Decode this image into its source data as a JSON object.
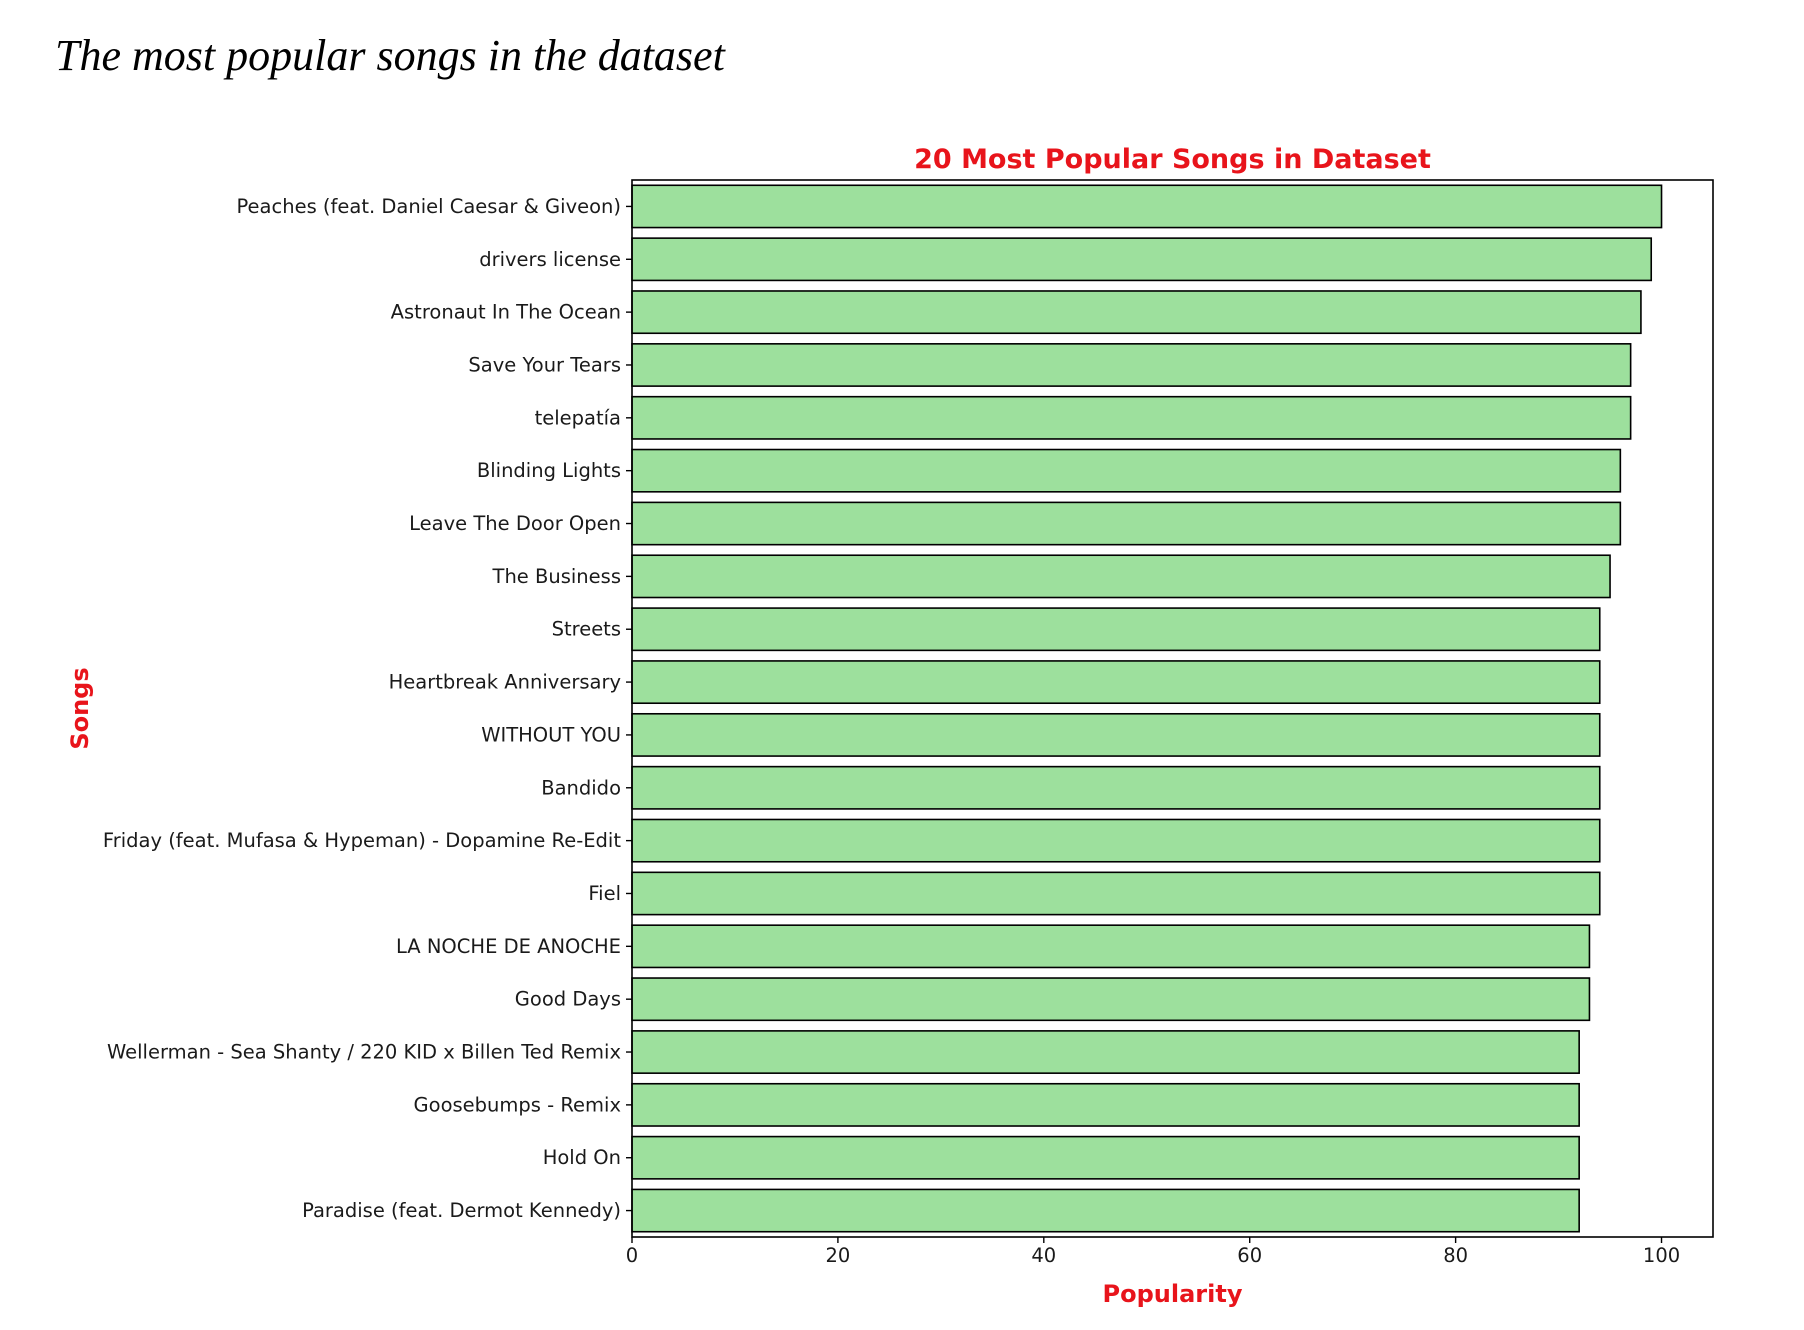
{
  "caption": "The most popular songs in the dataset",
  "colors": {
    "bar_fill": "#9de09d",
    "bar_edge": "#000000",
    "title_and_labels": "#e8141b",
    "axes": "#000000"
  },
  "chart_data": {
    "type": "bar",
    "orientation": "horizontal",
    "title": "20 Most Popular Songs in Dataset",
    "xlabel": "Popularity",
    "ylabel": "Songs",
    "xlim": [
      0,
      105
    ],
    "xticks": [
      0,
      20,
      40,
      60,
      80,
      100
    ],
    "grid": false,
    "categories": [
      "Peaches (feat. Daniel Caesar & Giveon)",
      "drivers license",
      "Astronaut In The Ocean",
      "Save Your Tears",
      "telepatía",
      "Blinding Lights",
      "Leave The Door Open",
      "The Business",
      "Streets",
      "Heartbreak Anniversary",
      "WITHOUT YOU",
      "Bandido",
      "Friday (feat. Mufasa & Hypeman) - Dopamine Re-Edit",
      "Fiel",
      "LA NOCHE DE ANOCHE",
      "Good Days",
      "Wellerman - Sea Shanty / 220 KID x Billen Ted Remix",
      "Goosebumps - Remix",
      "Hold On",
      "Paradise (feat. Dermot Kennedy)"
    ],
    "values": [
      100,
      99,
      98,
      97,
      97,
      96,
      96,
      95,
      94,
      94,
      94,
      94,
      94,
      94,
      93,
      93,
      92,
      92,
      92,
      92
    ]
  }
}
